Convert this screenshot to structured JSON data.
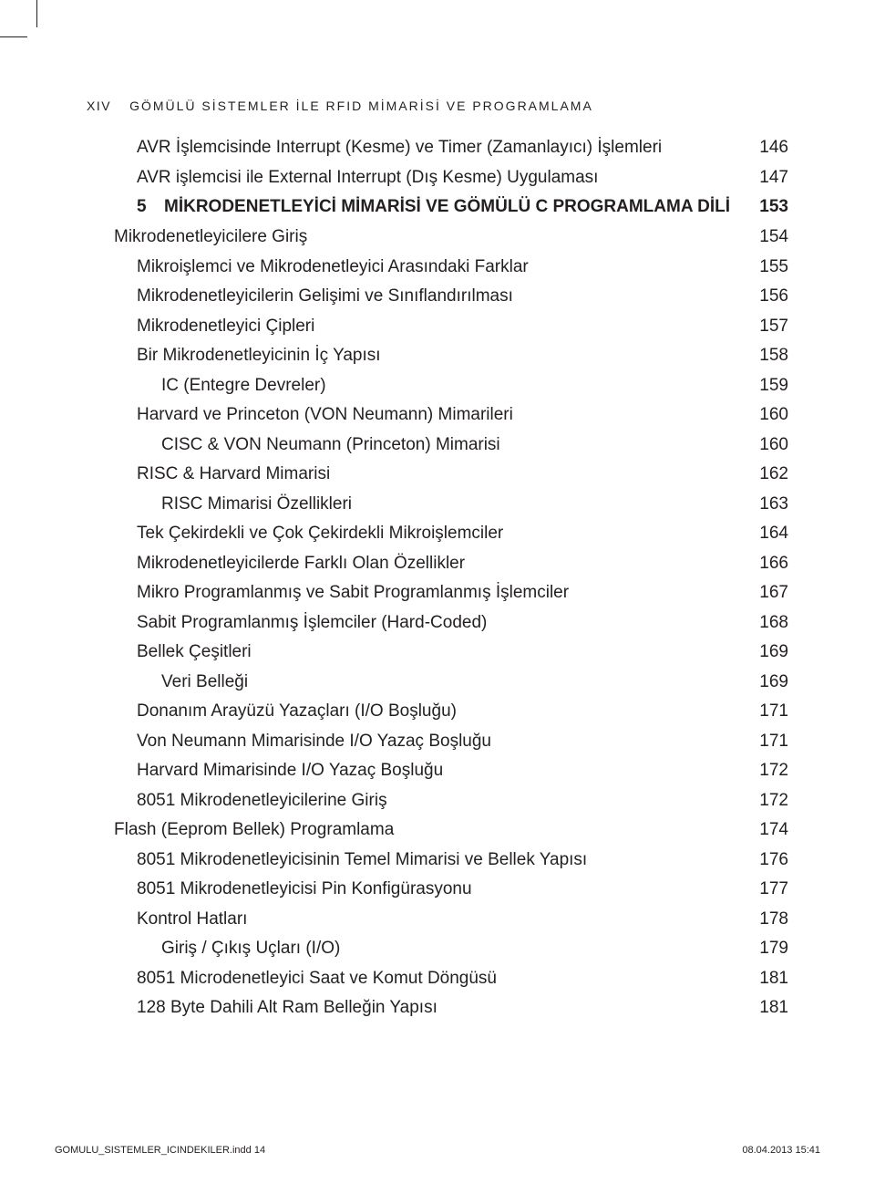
{
  "header": {
    "page_roman": "XIV",
    "book_title": "GÖMÜLÜ SİSTEMLER İLE RFID MİMARİSİ VE PROGRAMLAMA"
  },
  "entries": [
    {
      "indent": 2,
      "title": "AVR İşlemcisinde Interrupt (Kesme) ve Timer (Zamanlayıcı) İşlemleri",
      "page": "146",
      "chapter": false
    },
    {
      "indent": 2,
      "title": "AVR işlemcisi ile External Interrupt (Dış Kesme) Uygulaması",
      "page": "147",
      "chapter": false
    },
    {
      "indent": 0,
      "chapter_num": "5",
      "title": "MİKRODENETLEYİCİ MİMARİSİ VE GÖMÜLÜ C PROGRAMLAMA DİLİ",
      "page": "153",
      "chapter": true
    },
    {
      "indent": 1,
      "title": "Mikrodenetleyicilere Giriş",
      "page": "154",
      "chapter": false
    },
    {
      "indent": 2,
      "title": "Mikroişlemci ve Mikrodenetleyici Arasındaki Farklar",
      "page": "155",
      "chapter": false
    },
    {
      "indent": 2,
      "title": "Mikrodenetleyicilerin Gelişimi ve Sınıflandırılması",
      "page": "156",
      "chapter": false
    },
    {
      "indent": 2,
      "title": "Mikrodenetleyici Çipleri",
      "page": "157",
      "chapter": false
    },
    {
      "indent": 2,
      "title": "Bir Mikrodenetleyicinin İç Yapısı",
      "page": "158",
      "chapter": false
    },
    {
      "indent": 3,
      "title": "IC (Entegre Devreler)",
      "page": "159",
      "chapter": false
    },
    {
      "indent": 2,
      "title": "Harvard ve Princeton (VON Neumann) Mimarileri",
      "page": "160",
      "chapter": false
    },
    {
      "indent": 3,
      "title": "CISC & VON Neumann (Princeton) Mimarisi",
      "page": "160",
      "chapter": false
    },
    {
      "indent": 2,
      "title": "RISC & Harvard Mimarisi",
      "page": "162",
      "chapter": false
    },
    {
      "indent": 3,
      "title": "RISC Mimarisi Özellikleri",
      "page": "163",
      "chapter": false
    },
    {
      "indent": 2,
      "title": "Tek Çekirdekli ve Çok Çekirdekli Mikroişlemciler",
      "page": "164",
      "chapter": false
    },
    {
      "indent": 2,
      "title": "Mikrodenetleyicilerde Farklı Olan Özellikler",
      "page": "166",
      "chapter": false
    },
    {
      "indent": 2,
      "title": "Mikro Programlanmış ve Sabit Programlanmış İşlemciler",
      "page": "167",
      "chapter": false
    },
    {
      "indent": 2,
      "title": "Sabit Programlanmış İşlemciler (Hard-Coded)",
      "page": "168",
      "chapter": false
    },
    {
      "indent": 2,
      "title": "Bellek Çeşitleri",
      "page": "169",
      "chapter": false
    },
    {
      "indent": 3,
      "title": "Veri Belleği",
      "page": "169",
      "chapter": false
    },
    {
      "indent": 2,
      "title": "Donanım Arayüzü Yazaçları (I/O Boşluğu)",
      "page": "171",
      "chapter": false
    },
    {
      "indent": 2,
      "title": "Von Neumann Mimarisinde I/O Yazaç Boşluğu",
      "page": "171",
      "chapter": false
    },
    {
      "indent": 2,
      "title": "Harvard Mimarisinde I/O Yazaç Boşluğu",
      "page": "172",
      "chapter": false
    },
    {
      "indent": 2,
      "title": "8051 Mikrodenetleyicilerine Giriş",
      "page": "172",
      "chapter": false
    },
    {
      "indent": 1,
      "title": "Flash (Eeprom Bellek) Programlama",
      "page": "174",
      "chapter": false
    },
    {
      "indent": 2,
      "title": "8051 Mikrodenetleyicisinin Temel Mimarisi ve Bellek Yapısı",
      "page": "176",
      "chapter": false
    },
    {
      "indent": 2,
      "title": "8051 Mikrodenetleyicisi Pin Konfigürasyonu",
      "page": "177",
      "chapter": false
    },
    {
      "indent": 2,
      "title": "Kontrol Hatları",
      "page": "178",
      "chapter": false
    },
    {
      "indent": 3,
      "title": "Giriş / Çıkış Uçları (I/O)",
      "page": "179",
      "chapter": false
    },
    {
      "indent": 2,
      "title": "8051 Microdenetleyici Saat ve Komut Döngüsü",
      "page": "181",
      "chapter": false
    },
    {
      "indent": 2,
      "title": "128 Byte Dahili Alt Ram Belleğin Yapısı",
      "page": "181",
      "chapter": false
    }
  ],
  "footer": {
    "filename": "GOMULU_SISTEMLER_ICINDEKILER.indd   14",
    "timestamp": "08.04.2013   15:41"
  },
  "colors": {
    "text": "#231f20",
    "background": "#ffffff"
  }
}
